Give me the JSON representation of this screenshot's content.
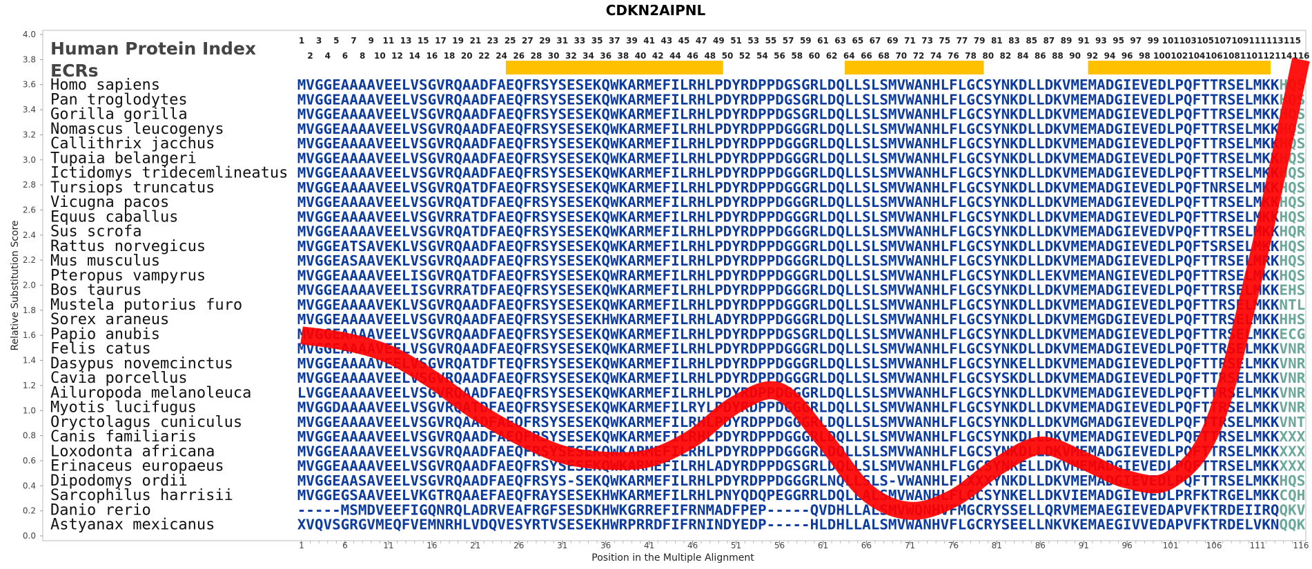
{
  "chart_data": {
    "type": "line",
    "title": "CDKN2AIPNL",
    "xlabel": "Position in the Multiple Alignment",
    "ylabel": "Relative Substitution Score",
    "xlim": [
      1,
      116
    ],
    "ylim": [
      0.0,
      4.0
    ],
    "yticks": [
      "0.0",
      "0.2",
      "0.4",
      "0.6",
      "0.8",
      "1.0",
      "1.2",
      "1.4",
      "1.6",
      "1.8",
      "2.0",
      "2.2",
      "2.4",
      "2.6",
      "2.8",
      "3.0",
      "3.2",
      "3.4",
      "3.6",
      "3.8",
      "4.0"
    ],
    "xticks": [
      1,
      6,
      11,
      16,
      21,
      26,
      31,
      36,
      41,
      46,
      51,
      56,
      61,
      66,
      71,
      76,
      81,
      86,
      91,
      96,
      101,
      106,
      111,
      116
    ],
    "header_index_label": "Human Protein Index",
    "header_ecr_label": "ECRs",
    "index_top": [
      1,
      3,
      5,
      7,
      9,
      11,
      13,
      15,
      17,
      19,
      21,
      23,
      25,
      27,
      29,
      31,
      33,
      35,
      37,
      39,
      41,
      43,
      45,
      47,
      49,
      51,
      53,
      55,
      57,
      59,
      61,
      63,
      65,
      67,
      69,
      71,
      73,
      75,
      77,
      79,
      81,
      83,
      85,
      87,
      89,
      91,
      93,
      95,
      97,
      99,
      101,
      103,
      105,
      107,
      109,
      111,
      113,
      115
    ],
    "index_bottom": [
      2,
      4,
      6,
      8,
      10,
      12,
      14,
      16,
      18,
      20,
      22,
      24,
      26,
      28,
      30,
      32,
      34,
      36,
      38,
      40,
      42,
      44,
      46,
      48,
      50,
      52,
      54,
      56,
      58,
      60,
      62,
      64,
      66,
      68,
      70,
      72,
      74,
      76,
      78,
      80,
      82,
      84,
      86,
      88,
      90,
      92,
      94,
      96,
      98,
      100,
      102,
      104,
      106,
      108,
      110,
      112,
      114,
      116
    ],
    "ecrs": [
      {
        "start": 25,
        "end": 49
      },
      {
        "start": 64,
        "end": 79
      },
      {
        "start": 92,
        "end": 112
      }
    ],
    "ecr_color": "#ffc000",
    "curve_color": "#ff0000",
    "series": [
      {
        "x": [
          1,
          6,
          11,
          16,
          21,
          26,
          31,
          36,
          41,
          46,
          51,
          56,
          61,
          66,
          71,
          76,
          81,
          86,
          91,
          96,
          101,
          106,
          111,
          116
        ],
        "y": [
          1.6,
          1.55,
          1.45,
          1.25,
          1.0,
          0.8,
          0.65,
          0.6,
          0.62,
          0.78,
          1.05,
          1.15,
          0.78,
          0.35,
          0.2,
          0.3,
          0.55,
          0.72,
          0.6,
          0.45,
          0.45,
          0.9,
          2.2,
          3.8
        ]
      }
    ],
    "seq_colors": {
      "normal": "#0d3b9e",
      "divergent": "#6aa89a"
    },
    "alignment": [
      {
        "species": "Homo sapiens",
        "seq": "MVGGEAAAAVEELVSGVRQAADFAEQFRSYSESEKQWKARMEFILRHLPDYRDPPDGSGRLDQLLSLSMVWANHLFLGCSYNKDLLDKVMEMADGIEVEDLPQFTTRSELMKK",
        "tail": "HQS"
      },
      {
        "species": "Pan troglodytes",
        "seq": "MVGGEAAAAVEELVSGVRQAADFAEQFRSYSESEKQWKARMEFILRHLPDYRDPPDGSGRLDQLLSLSMVWANHLFLGCSYNKDLLDKVMEMADGIEVEDLPQFTTRSELMKK",
        "tail": "HQS"
      },
      {
        "species": "Gorilla gorilla",
        "seq": "MVGGEAAAAVEELVSGVRQAADFAEQFRSYSESEKQWKARMEFILRHLPDYRDPPDGSGRLDQLLSLSMVWANHLFLGCSYNKDLLDKVMEMADGIEVEDLPQFTTRSELMKK",
        "tail": "HQS"
      },
      {
        "species": "Nomascus leucogenys",
        "seq": "MVGGEAAAAVEELVSGVRQAADFAEQFRSYSESEKQWKARMEFILRHLPDYRDPPDGGGRLDQLLSLSMVWANHLFLGCSYNKDLLDKVMEMADGIEVEDLPQFTTRSELMKK",
        "tail": "HQS"
      },
      {
        "species": "Callithrix jacchus",
        "seq": "MVGGEAAAAVEELVSGVRQAADFAEQFRSYSESEKQWKARMEFILRHLPDYRDPPDGGGRLDQLLSLSMVWANHLFLGCSYNKDLLDKVMEMADGIEVEDLPQFTTRSELMKK",
        "tail": "HQS"
      },
      {
        "species": "Tupaia belangeri",
        "seq": "MVGGEAAAAVEELVSGVRQAADFAEQFRSYSESEKQWKARMEFILRHLPDYRDPPDGGGRLDQLLSLSMVWANHLFLGCSYNKDLLDKVMEMADGIEVEDLPQFTTRSELMKK",
        "tail": "HQS"
      },
      {
        "species": "Ictidomys tridecemlineatus",
        "seq": "MVGGEAAAAVEELVSGVRQAADFAEQFRSYSESEKQWKARMEFILRHLPDYRDPPDGGGRLDQLLSLSMVWANHLFLGCSYNKDLLDKVMEMADGIEVEDLPQFTTRSELMKK",
        "tail": "HQS"
      },
      {
        "species": "Tursiops truncatus",
        "seq": "MVGGEAAAAVEELVSGVRQATDFAEQFRSYSESEKQWKARMEFILRHLPDYRDPPDGGGRLDQLLSLSMVWANHLFLGCSYNKDLLDKVMEMADGIEVEDLPQFTNRSELMKK",
        "tail": "HQS"
      },
      {
        "species": "Vicugna pacos",
        "seq": "MVGGEAAAAVEELVSGVRQATDFAEQFRSYSESEKQWKARMEFILRHLPDYRDPPDGGGRLDQLLSLSMVWANHLFLGCSYNKDLLDKVMEMADGIEVEDLPQFTTRSELMKK",
        "tail": "HQS"
      },
      {
        "species": "Equus caballus",
        "seq": "MVGGEAAAAVEELVSGVRRATDFAEQFRSYSESEKQWKARMEFILRHLPDYRDPPDGGGRLDQLLSLSMVWANHLFLGCSYNKDLLDKVMEMADGIEVEDLPQFTTRSELMKK",
        "tail": "HQS"
      },
      {
        "species": "Sus scrofa",
        "seq": "MVGGEAAAAVEELVSGVRQATDFAEQFRSYSESEKQWKARMEFILRHLPDYRDPPDGGGRLDQLLSLSMVWANHLFLGCSYNKDLLDKVMEMADGIEVEDVPQFTTRSELMKK",
        "tail": "HQR"
      },
      {
        "species": "Rattus norvegicus",
        "seq": "MVGGEATSAVEKLVSGVRQAADFAEQFRSYSESEKQWKARMEFILRHLPDYRDPPDGGGRLDQLLSLSMVWANHLFLGCSYNKDLLDKVMEMADGIEVEDLPQFTSRSELMKK",
        "tail": "HQS"
      },
      {
        "species": "Mus musculus",
        "seq": "MVGGEASAAVEKLVSGVRQAADFAEQFRSYSESEKQWKARMEFILRHLPDYRDPPDGGGRLDQLLSLSMVWANHLFLGCSYNKDLLDKVMEMADGIEVEDLPQFTTRSELMRK",
        "tail": "HQS"
      },
      {
        "species": "Pteropus vampyrus",
        "seq": "MVGGEAAAAVEELISGVRQATDFAEQFRSYSESEKQWRARMEFILRHLPDYRDPPDGGGRLDQLLSLSMVWANHLFLGCSYNKDLLEKVMEMANGIEVEDLPQFTTRSELMKK",
        "tail": "HQS"
      },
      {
        "species": "Bos taurus",
        "seq": "MVGGEAAAAVEELISGVRRATDFAEQFRSYSESEKQWKARMEFILRHLPDYRDPPDGGGRLDQLLSLSMVWANHLFLGCSYNKDLLDKVMEMADGIEVEDLPQFTTRSELMKK",
        "tail": "EHS"
      },
      {
        "species": "Mustela putorius furo",
        "seq": "MVGGEAAAAVEKLVSGVRQAADFAEQFRSYSESEKQWKARMEFILRHLPDYRDPPDGGGRLDQLLSLSMVWANHLFLGCSYNKDLLDKVMEMADGIEVEDLPQFTTRSELMKK",
        "tail": "NTL"
      },
      {
        "species": "Sorex araneus",
        "seq": "MVGGEAAAAVEELVSGVRQAADFAEQFRSYSESEKHWKARMEFILRHLADYRDPPDGGGRLDQLLSLSMVWANHLFLGCSYNKDLLDKVMEMGDGIEVEDLPQFTTRSELMKK",
        "tail": "HHS"
      },
      {
        "species": "Papio anubis",
        "seq": "MVGGEAAAAVEELVSGVRQAADFAEQFRSYSESEKQWKARMEFILRHLPDYRDPPDGSGRLDQLLSLSMVWANHLFLGCSYNKDLLDKVMEMADGIEVEDLPQFTTRSELMKK",
        "tail": "ECG"
      },
      {
        "species": "Felis catus",
        "seq": "MVGGEAAAAVEELVSGVRQAADFAEQFRSYSESEKQWKARMEFILRHLPDYRDPPDGGGRLDQLLSLSMVWANHLFLGCSYNKDLLDKVMEMADGIEVEDLPQFTTRSELMKK",
        "tail": "VNR"
      },
      {
        "species": "Dasypus novemcinctus",
        "seq": "MVGGEAAAAVEELVSGVRQATDFTEQFRSYSESEKQWKARMEFILRHLPDYRDPPDGGGRLDQLLSLSMVWANHLFLGCSYNKELLDKVMEMADGIEVEDLPQFTTRSELMKK",
        "tail": "VNR"
      },
      {
        "species": "Cavia porcellus",
        "seq": "MVGGEAAAAVEELVSGVRQAADFAEQFRSYSESEKQWKARMEFILRHLPDYRDPPDGGGRLDQLLSLSMVWANHLFLGCSYSKDLLDKVMEMADGIEVEDLPQFTTRSELMKK",
        "tail": "VNR"
      },
      {
        "species": "Ailuropoda melanoleuca",
        "seq": "LVGGEAAAAVEELVSGVRQAADFAEQFRSYSESEKQWKARMEFILRHLPDYRDPPDGGGRLDQLLSLSMVWANHLFLGCSYNKDLLDKVMEMADGIEVEDLPQFTTRSELMKK",
        "tail": "VNR"
      },
      {
        "species": "Myotis lucifugus",
        "seq": "MVGGDAAAAVEELVSGVRQATDFAEQFRSYSESEKQWKARMEFILRYLPDYRDPPDGGGRLDQLLSLSMVWANHLFLGCSYNKDLLDKVMEMADGIEVEDLPQFTTRSELMKK",
        "tail": "VNR"
      },
      {
        "species": "Oryctolagus cuniculus",
        "seq": "MVGGEAAAAVEELVSGVRQAADFAEQFRSYSESEKQWKARMEFILRHLPDYRDPPDGGGRLDQLLSLSMVWANHLFLGCSYNKDLLDKVMGMADGIEVEDLPQFTTRSELMKK",
        "tail": "VNT"
      },
      {
        "species": "Canis familiaris",
        "seq": "MVGGEAAAAVEELVSGVRQAADFAEQFRSYSESEKQWKARMEFILRHLPDYRDPPDGGGRLDQLLSLSMVWANHLFLGCSYNKDLLDKVMEMADGIEVEDLPQFTTRSELMKK",
        "tail": "XXX"
      },
      {
        "species": "Loxodonta africana",
        "seq": "MVGGEAAAAVEELVSGVRQAADFAEQFRSYSESEKQWKARMEFILRHLPDYRDPPDGGGRLDQLLSLSMVWANHLFLGCSYNKDLLDKVMEMADGIEVEDLPQFTTRSELMKK",
        "tail": "XXX"
      },
      {
        "species": "Erinaceus europaeus",
        "seq": "MVGGEAAAAVEELVSGVRQAADFAEQFRSYSESEKQWKARMEFILRHLADYRDPPDGSGRLDQLLSLSMVWANHLFLGCSYNKELLDKVMEMADGIEVEDLPQFTTRSELMKK",
        "tail": "XXX"
      },
      {
        "species": "Dipodomys ordii",
        "seq": "MVGGEAASAVEELVSGVRQAADFAEQFRSYS-SEKQWKARMEFILRHLPDYRDPPDGGGRLNQLLSLS-VWANHLFLXXXYNKDLLDKVMEMADGIEVEDLPQFTTRSELMKK",
        "tail": "HQS"
      },
      {
        "species": "Sarcophilus harrisii",
        "seq": "MVGGEGSAAVEELVKGTRQAAEFAEQFRAYSESEKHWKARMEFILRHLPNYQDQPEGGRRLDQLLALSMVWANHLFLGCSYNKELLDKVIEMADGIEVEDLPRFKTRGELMKK",
        "tail": "CQH"
      },
      {
        "species": "Danio rerio",
        "seq": "-----MSMDVEEFIGQNRQLADRVEAFRGFSESDKHWKGRREFIFRNMADFPEP-----QVDHLLALSMVWQNHVFMGCRYSSELLQRVMEMAEGIEVEDAPVFKTRDEIIRQ",
        "tail": "QKV"
      },
      {
        "species": "Astyanax mexicanus",
        "seq": "XVQVSGRGVMEQFVEMNRHLVDQVESYRTVSESEKHWRPRRDFIFRNINDYEDP-----HLDHLLALSMVWANHVFLGCRYSEELLNKVKEMAEGIVVEDAPVFKTRDELVKN",
        "tail": "QQK"
      }
    ]
  }
}
